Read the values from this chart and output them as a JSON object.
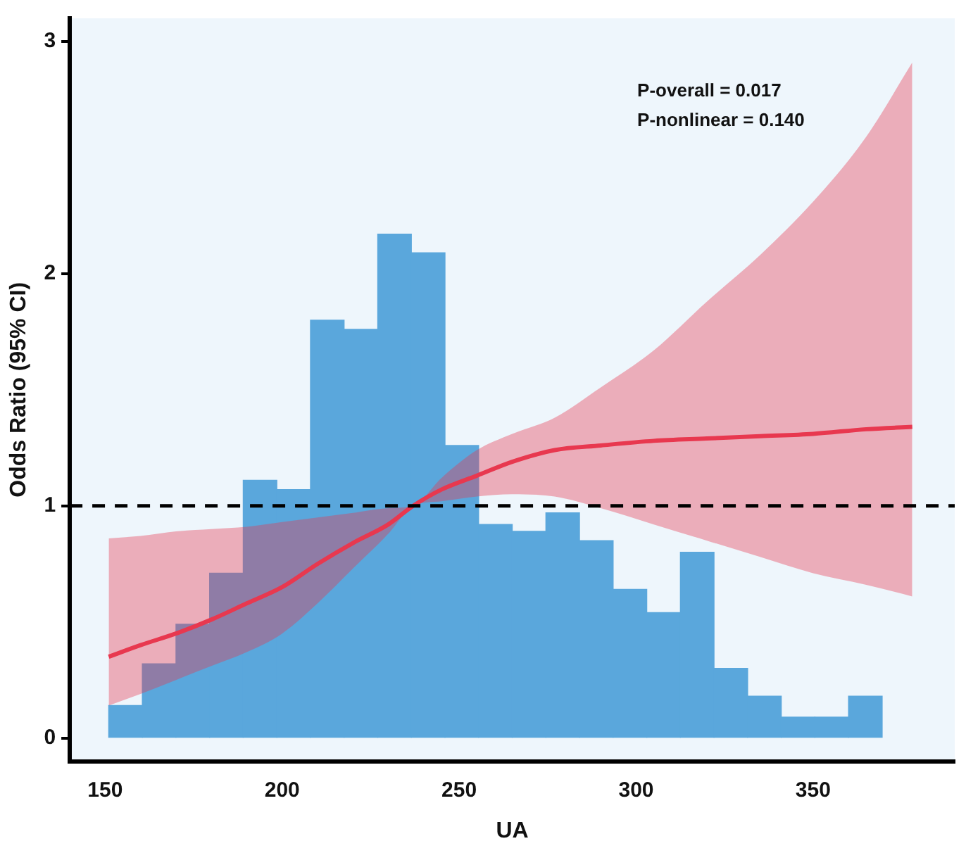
{
  "chart_data": {
    "type": "line",
    "xlabel": "UA",
    "ylabel": "Odds Ratio (95% CI)",
    "xlim": [
      140,
      390
    ],
    "xticks": [
      150,
      200,
      250,
      300,
      350
    ],
    "ylim": [
      -0.1,
      3.1
    ],
    "yticks": [
      0,
      1,
      2,
      3
    ],
    "legend": false,
    "annotations": [
      "P-overall = 0.017",
      "P-nonlinear = 0.140"
    ],
    "ref_lines": [
      {
        "axis": "y",
        "value": 1,
        "color": "#000000",
        "line_style": "dashed"
      }
    ],
    "series": [
      {
        "type": "histogram",
        "color": "#5aa7dc",
        "bins": [
          151,
          160.5,
          170,
          179.5,
          189,
          198.5,
          208,
          217.5,
          227,
          236.5,
          246,
          255.5,
          265,
          274.5,
          284,
          293.5,
          303,
          312.5,
          322,
          331.5,
          341,
          350.5,
          360,
          369.5
        ],
        "values": [
          0.14,
          0.32,
          0.49,
          0.71,
          1.11,
          1.07,
          1.8,
          1.76,
          2.17,
          2.09,
          1.26,
          0.92,
          0.89,
          0.97,
          0.85,
          0.64,
          0.54,
          0.8,
          0.3,
          0.18,
          0.09,
          0.09,
          0.18
        ]
      },
      {
        "color": "#e8384f",
        "x": [
          151,
          160,
          170,
          180,
          190,
          200,
          210,
          220,
          230,
          237,
          245,
          255,
          265,
          277,
          290,
          305,
          320,
          335,
          350,
          365,
          378
        ],
        "values": [
          0.35,
          0.4,
          0.45,
          0.51,
          0.58,
          0.65,
          0.75,
          0.84,
          0.92,
          1.0,
          1.07,
          1.13,
          1.19,
          1.24,
          1.26,
          1.28,
          1.29,
          1.3,
          1.31,
          1.33,
          1.34
        ],
        "lower": [
          0.14,
          0.19,
          0.25,
          0.31,
          0.37,
          0.45,
          0.58,
          0.73,
          0.88,
          1.0,
          1.02,
          1.04,
          1.05,
          1.04,
          0.99,
          0.92,
          0.85,
          0.78,
          0.71,
          0.66,
          0.61
        ],
        "upper": [
          0.86,
          0.87,
          0.89,
          0.9,
          0.91,
          0.93,
          0.95,
          0.97,
          0.99,
          1.0,
          1.12,
          1.24,
          1.31,
          1.38,
          1.51,
          1.67,
          1.88,
          2.08,
          2.31,
          2.59,
          2.91
        ]
      }
    ]
  }
}
